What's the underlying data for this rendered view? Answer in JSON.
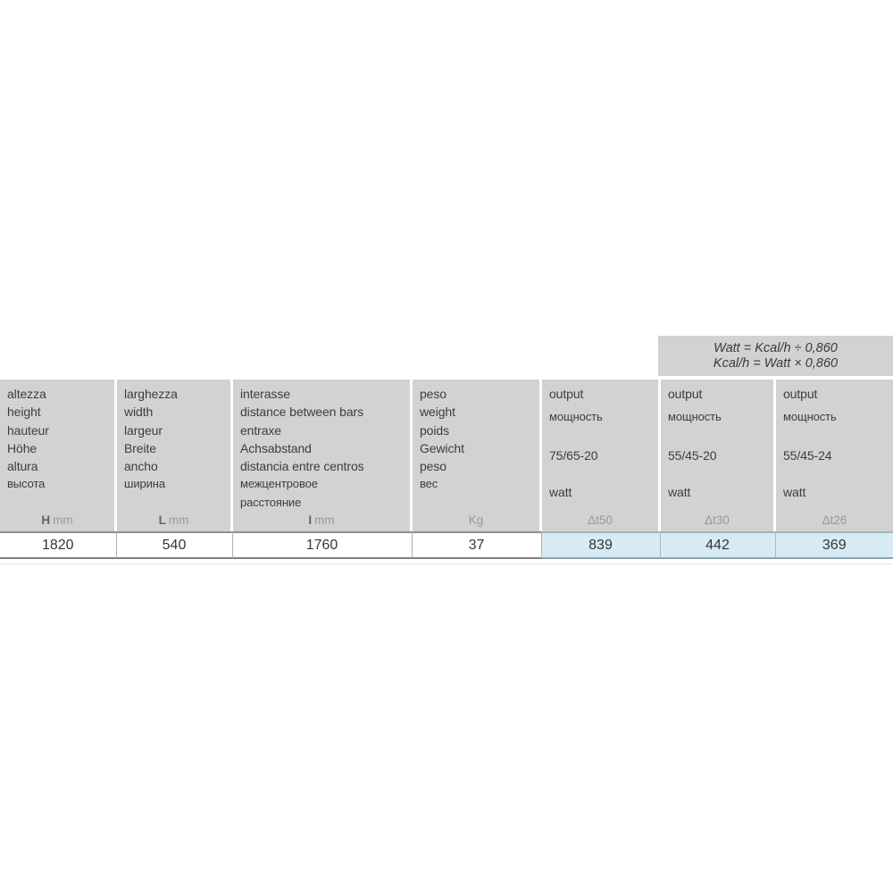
{
  "formula_box": {
    "line1": "Watt = Kcal/h ÷ 0,860",
    "line2": "Kcal/h = Watt × 0,860"
  },
  "table": {
    "columns": [
      {
        "id": "height",
        "labels": [
          "altezza",
          "height",
          "hauteur",
          "Höhe",
          "altura",
          "высота"
        ],
        "unit_bold": "H",
        "unit": "mm",
        "value": "1820",
        "highlight": false
      },
      {
        "id": "width",
        "labels": [
          "larghezza",
          "width",
          "largeur",
          "Breite",
          "ancho",
          "ширина"
        ],
        "unit_bold": "L",
        "unit": "mm",
        "value": "540",
        "highlight": false
      },
      {
        "id": "distance-between-bars",
        "labels": [
          "interasse",
          "distance between bars",
          "entraxe",
          "Achsabstand",
          "distancia entre centros",
          "межцентровое\nрасстояние"
        ],
        "unit_bold": "I",
        "unit": "mm",
        "value": "1760",
        "highlight": false
      },
      {
        "id": "weight",
        "labels": [
          "peso",
          "weight",
          "poids",
          "Gewicht",
          "peso",
          "вес"
        ],
        "unit_bold": "",
        "unit": "Kg",
        "value": "37",
        "highlight": false
      },
      {
        "id": "output-dt50",
        "labels": [
          "output",
          "мощность",
          "75/65-20",
          "watt"
        ],
        "unit_bold": "",
        "unit": "Δt50",
        "value": "839",
        "highlight": true
      },
      {
        "id": "output-dt30",
        "labels": [
          "output",
          "мощность",
          "55/45-20",
          "watt"
        ],
        "unit_bold": "",
        "unit": "Δt30",
        "value": "442",
        "highlight": true
      },
      {
        "id": "output-dt26",
        "labels": [
          "output",
          "мощность",
          "55/45-24",
          "watt"
        ],
        "unit_bold": "",
        "unit": "Δt26",
        "value": "369",
        "highlight": true
      }
    ]
  },
  "colors": {
    "header_bg": "#d2d2d2",
    "highlight_bg": "#d8eaf2",
    "highlight_border": "#9db5bf",
    "text": "#3d3d3d",
    "unit_text": "#999999",
    "unit_bold_text": "#646464",
    "row_border": "#8f8f8f"
  }
}
